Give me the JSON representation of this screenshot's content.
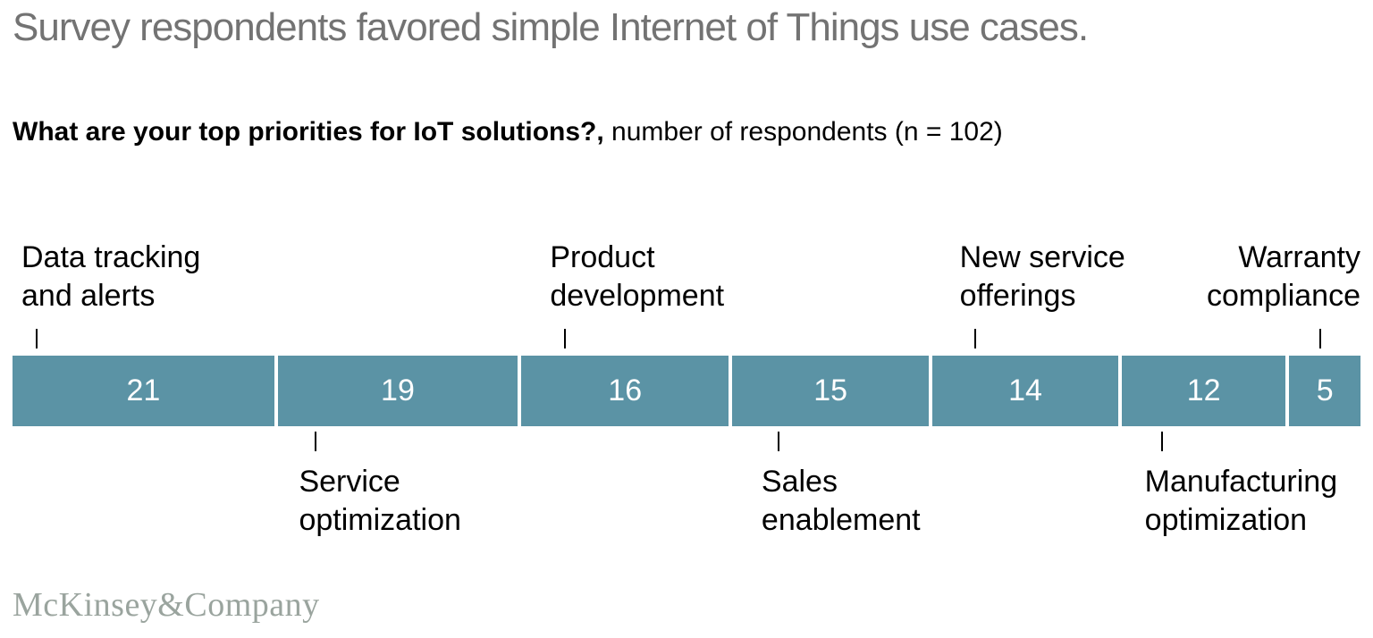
{
  "title": "Survey respondents favored simple Internet of Things use cases.",
  "subtitle": {
    "question_bold": "What are your top priorities for IoT solutions?,",
    "rest": " number of respondents (n = 102)"
  },
  "footer": {
    "brand": "McKinsey&Company"
  },
  "colors": {
    "bar": "#5b93a5",
    "title_text": "#737373",
    "label_text": "#000000",
    "value_text": "#ffffff",
    "brand_text": "#9aa49e"
  },
  "chart_data": {
    "type": "bar",
    "variant": "single-stacked-horizontal",
    "title": "What are your top priorities for IoT solutions?",
    "unit_label": "number of respondents",
    "n_total": 102,
    "legend": "none",
    "grid": false,
    "categories": [
      "Data tracking and alerts",
      "Service optimization",
      "Product development",
      "Sales enablement",
      "New service offerings",
      "Manufacturing optimization",
      "Warranty compliance"
    ],
    "values": [
      21,
      19,
      16,
      15,
      14,
      12,
      5
    ],
    "segments": [
      {
        "label": "Data tracking and alerts",
        "value": 21,
        "label_position": "above",
        "label_lines": [
          "Data tracking",
          "and alerts"
        ],
        "align": "left"
      },
      {
        "label": "Service optimization",
        "value": 19,
        "label_position": "below",
        "label_lines": [
          "Service",
          "optimization"
        ],
        "align": "left"
      },
      {
        "label": "Product development",
        "value": 16,
        "label_position": "above",
        "label_lines": [
          "Product",
          "development"
        ],
        "align": "left"
      },
      {
        "label": "Sales enablement",
        "value": 15,
        "label_position": "below",
        "label_lines": [
          "Sales",
          "enablement"
        ],
        "align": "left"
      },
      {
        "label": "New service offerings",
        "value": 14,
        "label_position": "above",
        "label_lines": [
          "New service",
          "offerings"
        ],
        "align": "left"
      },
      {
        "label": "Manufacturing optimization",
        "value": 12,
        "label_position": "below",
        "label_lines": [
          "Manufacturing",
          "optimization"
        ],
        "align": "left"
      },
      {
        "label": "Warranty compliance",
        "value": 5,
        "label_position": "above",
        "label_lines": [
          "Warranty",
          "compliance"
        ],
        "align": "right"
      }
    ]
  }
}
